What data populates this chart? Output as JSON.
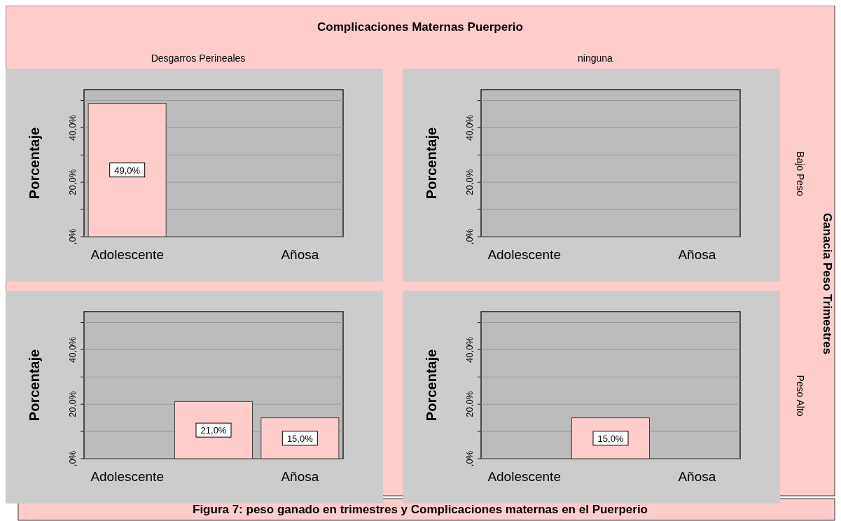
{
  "chart_data": [
    {
      "type": "bar",
      "title": "Desgarros Perineales",
      "ylabel": "Porcentaje",
      "categories": [
        "Adolescente",
        null,
        "Añosa"
      ],
      "values": [
        49,
        null,
        null
      ],
      "color": "#ffcccc",
      "ylim": [
        0,
        54
      ],
      "yticks": [
        {
          "value": 0,
          "label": ",0%"
        },
        {
          "value": 10,
          "label": null
        },
        {
          "value": 20,
          "label": "20,0%"
        },
        {
          "value": 30,
          "label": null
        },
        {
          "value": 40,
          "label": "40,0%"
        },
        {
          "value": 50,
          "label": null
        }
      ],
      "grid": "y",
      "data_labels": true,
      "value_labels": [
        "49,0%",
        null,
        null
      ]
    },
    {
      "type": "bar",
      "title": "ninguna",
      "ylabel": "Porcentaje",
      "y2label": "Bajo Peso",
      "categories": [
        "Adolescente",
        null,
        "Añosa"
      ],
      "values": [
        null,
        null,
        null
      ],
      "ylim": [
        0,
        54
      ],
      "yticks": [
        {
          "value": 0,
          "label": ",0%"
        },
        {
          "value": 10,
          "label": null
        },
        {
          "value": 20,
          "label": "20,0%"
        },
        {
          "value": 30,
          "label": null
        },
        {
          "value": 40,
          "label": "40,0%"
        },
        {
          "value": 50,
          "label": null
        }
      ],
      "grid": "y"
    },
    {
      "type": "bar",
      "ylabel": "Porcentaje",
      "categories": [
        "Adolescente",
        null,
        "Añosa"
      ],
      "values": [
        null,
        21,
        15
      ],
      "color": "#ffcccc",
      "ylim": [
        0,
        54
      ],
      "yticks": [
        {
          "value": 0,
          "label": ",0%"
        },
        {
          "value": 10,
          "label": null
        },
        {
          "value": 20,
          "label": "20,0%"
        },
        {
          "value": 30,
          "label": null
        },
        {
          "value": 40,
          "label": "40,0%"
        },
        {
          "value": 50,
          "label": null
        }
      ],
      "grid": "y",
      "data_labels": true,
      "value_labels": [
        null,
        "21,0%",
        "15,0%"
      ]
    },
    {
      "type": "bar",
      "ylabel": "Porcentaje",
      "y2label": "Peso Alto",
      "categories": [
        "Adolescente",
        null,
        "Añosa"
      ],
      "values": [
        null,
        15,
        null
      ],
      "color": "#ffcccc",
      "ylim": [
        0,
        54
      ],
      "yticks": [
        {
          "value": 0,
          "label": ",0%"
        },
        {
          "value": 10,
          "label": null
        },
        {
          "value": 20,
          "label": "20,0%"
        },
        {
          "value": 30,
          "label": null
        },
        {
          "value": 40,
          "label": "40,0%"
        },
        {
          "value": 50,
          "label": null
        }
      ],
      "grid": "y",
      "data_labels": true,
      "value_labels": [
        null,
        "15,0%",
        null
      ]
    },
    {
      "type": "other",
      "title": "Complicaciones Maternas Puerperio",
      "annotations": [
        "Ganacia Peso Trimestres",
        "Figura 7: peso ganado en trimestres y Complicaciones maternas en el Puerperio"
      ]
    }
  ]
}
